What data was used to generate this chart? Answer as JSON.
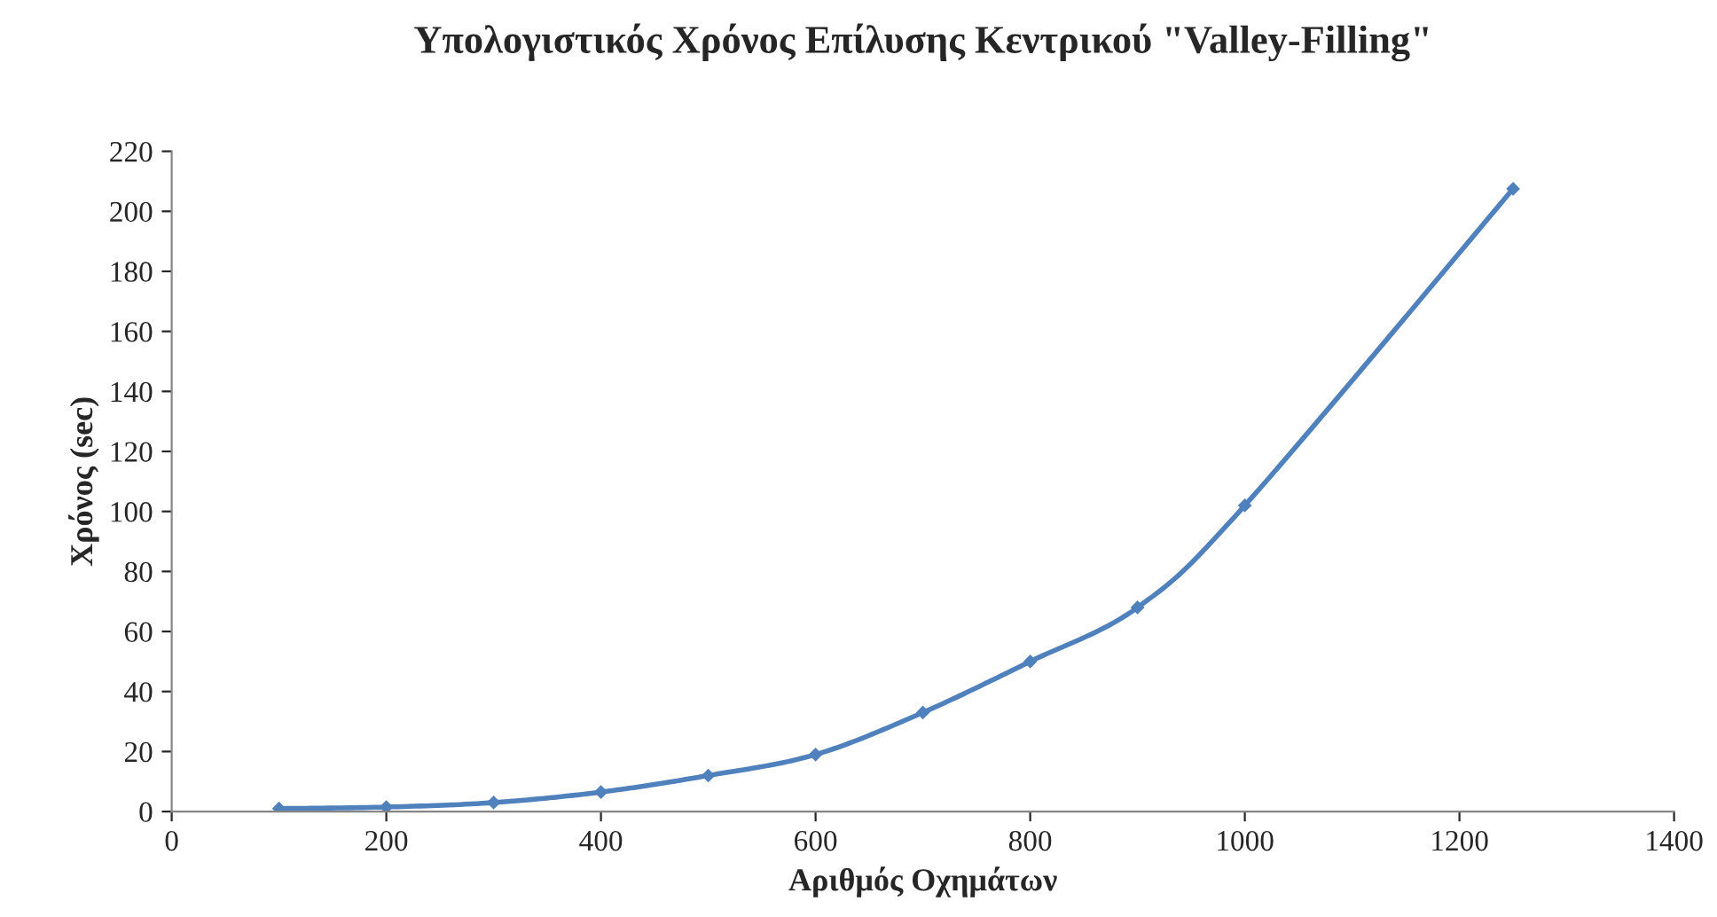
{
  "chart_data": {
    "type": "line",
    "title": "Υπολογιστικός Χρόνος Επίλυσης Κεντρικού \"Valley-Filling\"",
    "xlabel": "Αριθμός Οχημάτων",
    "ylabel": "Χρόνος (sec)",
    "x": [
      100,
      200,
      300,
      400,
      500,
      600,
      700,
      800,
      900,
      1000,
      1250
    ],
    "series": [
      {
        "color": "#4f81bd",
        "values": [
          1,
          1.5,
          3,
          6.5,
          12,
          19,
          33,
          50,
          68,
          102,
          207.5
        ]
      }
    ],
    "xlim": [
      0,
      1400
    ],
    "xticks": [
      0,
      200,
      400,
      600,
      800,
      1000,
      1200,
      1400
    ],
    "ylim": [
      0,
      220
    ],
    "yticks": [
      0,
      20,
      40,
      60,
      80,
      100,
      120,
      140,
      160,
      180,
      200,
      220
    ],
    "grid": false,
    "legend": false,
    "marker": "diamond",
    "line_style": "solid"
  }
}
